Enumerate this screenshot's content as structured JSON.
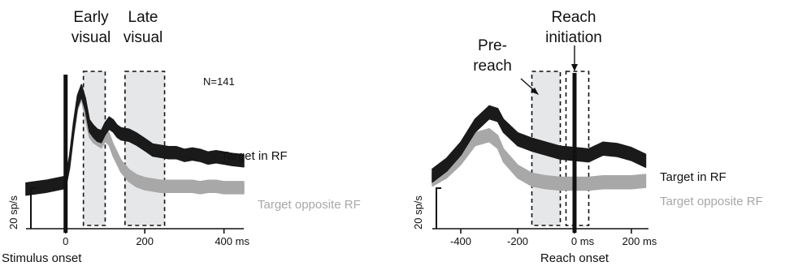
{
  "chart_data": [
    {
      "type": "area",
      "xlabel": "Stimulus onset",
      "scale_bar_label": "20 sp/s",
      "x_tick_labels": [
        "0",
        "200",
        "400 ms"
      ],
      "x_ticks": [
        0,
        200,
        400
      ],
      "xlim": [
        -100,
        450
      ],
      "ylim": [
        0,
        100
      ],
      "n_label": "N=141",
      "windows": [
        {
          "label_line1": "Early",
          "label_line2": "visual",
          "start": 45,
          "end": 100
        },
        {
          "label_line1": "Late",
          "label_line2": "visual",
          "start": 150,
          "end": 250
        }
      ],
      "event_marker_x": 0,
      "series": [
        {
          "name": "Target in RF",
          "color": "#1a1a1a",
          "x": [
            -100,
            -50,
            0,
            10,
            20,
            30,
            40,
            50,
            60,
            70,
            80,
            90,
            100,
            110,
            120,
            130,
            140,
            160,
            180,
            200,
            220,
            240,
            260,
            280,
            300,
            320,
            340,
            360,
            380,
            400,
            420,
            450
          ],
          "y": [
            15,
            17,
            20,
            35,
            60,
            80,
            88,
            78,
            62,
            58,
            55,
            54,
            60,
            64,
            62,
            58,
            56,
            55,
            52,
            48,
            44,
            43,
            42,
            42,
            40,
            41,
            40,
            38,
            39,
            38,
            37,
            36
          ]
        },
        {
          "name": "Target opposite RF",
          "color": "#a8a8a8",
          "x": [
            -100,
            -50,
            0,
            10,
            20,
            30,
            40,
            50,
            60,
            70,
            80,
            90,
            100,
            110,
            120,
            130,
            140,
            160,
            180,
            200,
            220,
            240,
            260,
            280,
            300,
            320,
            340,
            360,
            380,
            400,
            420,
            450
          ],
          "y": [
            15,
            17,
            20,
            35,
            58,
            78,
            86,
            72,
            58,
            54,
            52,
            50,
            55,
            52,
            44,
            38,
            32,
            25,
            21,
            19,
            18,
            17,
            17,
            17,
            17,
            17,
            16,
            17,
            17,
            16,
            16,
            16
          ]
        }
      ]
    },
    {
      "type": "area",
      "xlabel": "Reach onset",
      "scale_bar_label": "20 sp/s",
      "x_tick_labels": [
        "-400",
        "-200",
        "0 ms",
        "200 ms"
      ],
      "x_ticks": [
        -400,
        -200,
        0,
        200
      ],
      "xlim": [
        -500,
        260
      ],
      "ylim": [
        0,
        100
      ],
      "windows": [
        {
          "label_line1": "Pre-",
          "label_line2": "reach",
          "start": -150,
          "end": -50
        },
        {
          "label_line1": "Reach",
          "label_line2": "initiation",
          "start": -30,
          "end": 50
        }
      ],
      "event_marker_x": 0,
      "series": [
        {
          "name": "Target in RF",
          "color": "#1a1a1a",
          "x": [
            -500,
            -450,
            -400,
            -350,
            -300,
            -270,
            -250,
            -200,
            -150,
            -100,
            -50,
            0,
            50,
            100,
            150,
            200,
            250
          ],
          "y": [
            25,
            33,
            45,
            62,
            72,
            70,
            62,
            52,
            48,
            45,
            42,
            41,
            40,
            45,
            44,
            41,
            36
          ]
        },
        {
          "name": "Target opposite RF",
          "color": "#a8a8a8",
          "x": [
            -500,
            -450,
            -400,
            -350,
            -300,
            -270,
            -250,
            -200,
            -150,
            -100,
            -50,
            0,
            50,
            100,
            150,
            200,
            250
          ],
          "y": [
            22,
            28,
            38,
            52,
            55,
            50,
            40,
            28,
            22,
            20,
            19,
            19,
            19,
            20,
            20,
            20,
            21
          ]
        }
      ]
    }
  ]
}
